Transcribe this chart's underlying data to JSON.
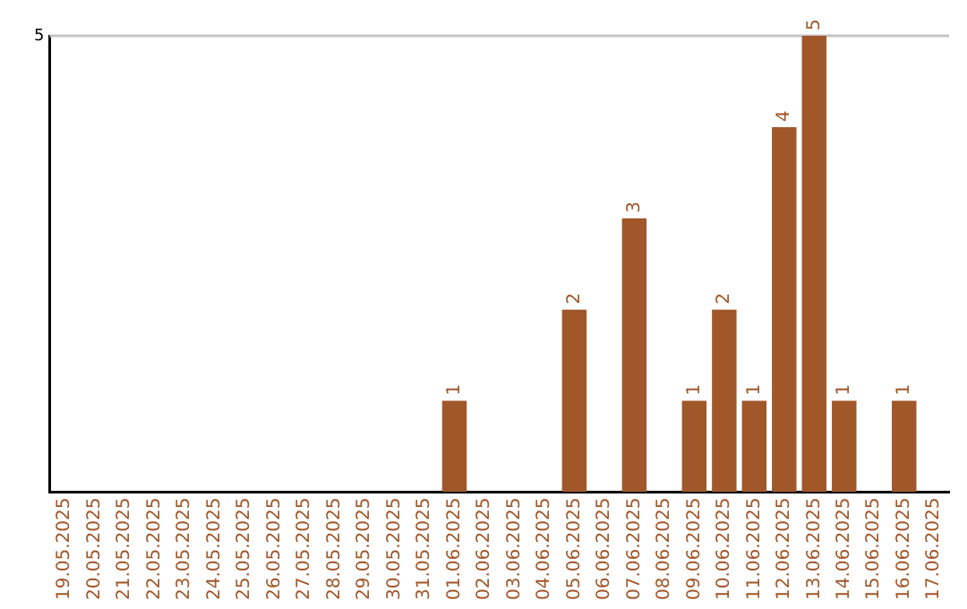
{
  "chart_data": {
    "type": "bar",
    "categories": [
      "19.05.2025",
      "20.05.2025",
      "21.05.2025",
      "22.05.2025",
      "23.05.2025",
      "24.05.2025",
      "25.05.2025",
      "26.05.2025",
      "27.05.2025",
      "28.05.2025",
      "29.05.2025",
      "30.05.2025",
      "31.05.2025",
      "01.06.2025",
      "02.06.2025",
      "03.06.2025",
      "04.06.2025",
      "05.06.2025",
      "06.06.2025",
      "07.06.2025",
      "08.06.2025",
      "09.06.2025",
      "10.06.2025",
      "11.06.2025",
      "12.06.2025",
      "13.06.2025",
      "14.06.2025",
      "15.06.2025",
      "16.06.2025",
      "17.06.2025"
    ],
    "values": [
      null,
      null,
      null,
      null,
      null,
      null,
      null,
      null,
      null,
      null,
      null,
      null,
      null,
      1,
      null,
      null,
      null,
      2,
      null,
      3,
      null,
      1,
      2,
      1,
      4,
      5,
      1,
      null,
      1,
      null
    ],
    "data_labels": true,
    "color": "#a0572a",
    "ylim": [
      0,
      5
    ],
    "yticks": [
      5
    ],
    "ref_lines": [
      {
        "axis": "y",
        "value": 5,
        "color": "#c4c4c4"
      }
    ],
    "legend": false
  }
}
